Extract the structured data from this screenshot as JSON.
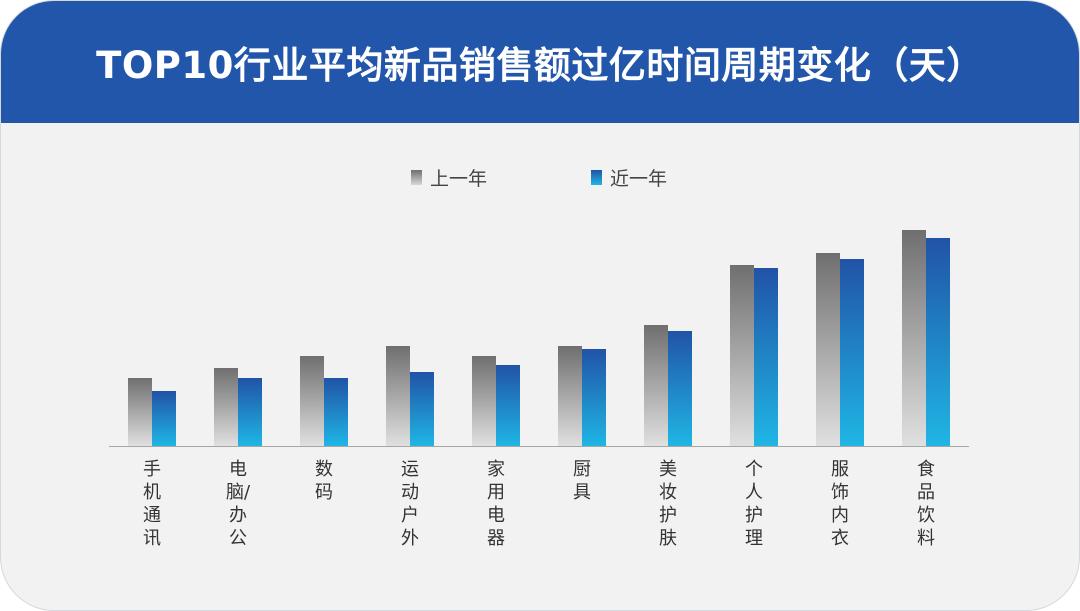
{
  "title": "TOP10行业平均新品销售额过亿时间周期变化（天）",
  "colors": {
    "banner": "#2256aa",
    "background": "#f2f2f2",
    "prev_top": "#6f6f6f",
    "prev_bottom": "#e0e0e0",
    "recent_top": "#2153a6",
    "recent_bottom": "#1fb6e4"
  },
  "chart_data": {
    "type": "bar",
    "title": "TOP10行业平均新品销售额过亿时间周期变化（天）",
    "categories": [
      "手机通讯",
      "电脑/办公",
      "数码",
      "运动户外",
      "家用电器",
      "厨具",
      "美妆护肤",
      "个人护理",
      "服饰内衣",
      "食品饮料"
    ],
    "series": [
      {
        "name": "上一年",
        "values": [
          68,
          78,
          90,
          100,
          90,
          100,
          121,
          181,
          193,
          216
        ]
      },
      {
        "name": "近一年",
        "values": [
          55,
          68,
          68,
          74,
          81,
          97,
          115,
          178,
          187,
          208
        ]
      }
    ],
    "ylim": [
      0,
      216
    ],
    "grid": false,
    "legend": "top-center",
    "xlabel": "",
    "ylabel": ""
  }
}
